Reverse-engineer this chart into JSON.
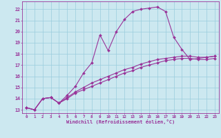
{
  "title": "",
  "xlabel": "Windchill (Refroidissement éolien,°C)",
  "bg_color": "#cce8f0",
  "line_color": "#993399",
  "grid_color": "#99ccdd",
  "xlim": [
    -0.5,
    23.5
  ],
  "ylim": [
    12.7,
    22.7
  ],
  "xticks": [
    0,
    1,
    2,
    3,
    4,
    5,
    6,
    7,
    8,
    9,
    10,
    11,
    12,
    13,
    14,
    15,
    16,
    17,
    18,
    19,
    20,
    21,
    22,
    23
  ],
  "yticks": [
    13,
    14,
    15,
    16,
    17,
    18,
    19,
    20,
    21,
    22
  ],
  "line1_x": [
    0,
    1,
    2,
    3,
    4,
    5,
    6,
    7,
    8,
    9,
    10,
    11,
    12,
    13,
    14,
    15,
    16,
    17,
    18,
    19,
    20,
    21,
    22,
    23
  ],
  "line1_y": [
    13.2,
    13.0,
    14.0,
    14.1,
    13.6,
    14.3,
    15.1,
    16.3,
    17.2,
    19.7,
    18.3,
    20.0,
    21.1,
    21.8,
    22.0,
    22.1,
    22.2,
    21.8,
    19.5,
    18.4,
    17.5,
    17.6,
    17.7,
    17.8
  ],
  "line2_x": [
    0,
    1,
    2,
    3,
    4,
    5,
    6,
    7,
    8,
    9,
    10,
    11,
    12,
    13,
    14,
    15,
    16,
    17,
    18,
    19,
    20,
    21,
    22,
    23
  ],
  "line2_y": [
    13.2,
    13.0,
    14.0,
    14.1,
    13.6,
    14.1,
    14.6,
    15.0,
    15.4,
    15.7,
    16.0,
    16.3,
    16.6,
    16.8,
    17.1,
    17.3,
    17.5,
    17.6,
    17.7,
    17.8,
    17.8,
    17.7,
    17.7,
    17.8
  ],
  "line3_x": [
    0,
    1,
    2,
    3,
    4,
    5,
    6,
    7,
    8,
    9,
    10,
    11,
    12,
    13,
    14,
    15,
    16,
    17,
    18,
    19,
    20,
    21,
    22,
    23
  ],
  "line3_y": [
    13.2,
    13.0,
    14.0,
    14.1,
    13.6,
    14.0,
    14.5,
    14.8,
    15.1,
    15.4,
    15.7,
    16.0,
    16.3,
    16.5,
    16.8,
    17.0,
    17.2,
    17.4,
    17.5,
    17.6,
    17.6,
    17.5,
    17.5,
    17.6
  ]
}
